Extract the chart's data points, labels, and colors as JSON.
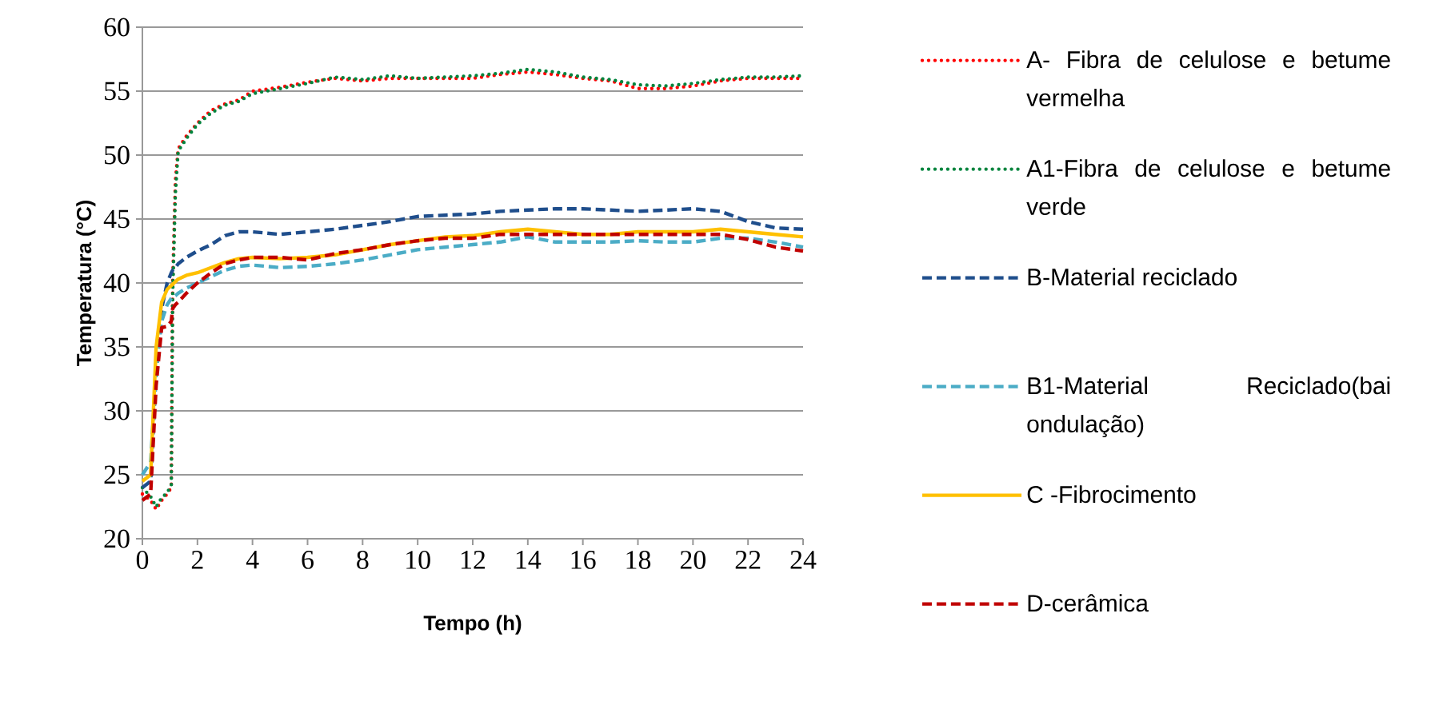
{
  "chart_data": {
    "type": "line",
    "xlabel": "Tempo (h)",
    "ylabel": "Temperatura (°C)",
    "x": [
      0,
      0.3,
      0.5,
      0.7,
      0.9,
      1.05,
      1.1,
      1.2,
      1.3,
      1.6,
      2,
      2.5,
      3,
      3.5,
      4,
      5,
      6,
      7,
      8,
      9,
      10,
      11,
      12,
      13,
      14,
      15,
      16,
      17,
      18,
      19,
      20,
      21,
      22,
      23,
      24
    ],
    "series": [
      {
        "name": "A- Fibra de celulose e betume vermelha",
        "color": "#ff0000",
        "line_style": "dotted",
        "values": [
          23.5,
          23,
          22.3,
          23,
          23.5,
          24,
          40,
          48,
          50.5,
          51.5,
          52.5,
          53.5,
          54,
          54.3,
          55,
          55.3,
          55.7,
          56,
          55.8,
          56,
          56,
          56,
          56,
          56.3,
          56.5,
          56.3,
          56,
          55.8,
          55.2,
          55.2,
          55.4,
          55.8,
          56,
          56,
          56
        ]
      },
      {
        "name": "A1-Fibra de celulose e betume verde",
        "color": "#00843d",
        "line_style": "dotted",
        "values": [
          24,
          23.3,
          22.5,
          23.2,
          23.6,
          24.2,
          39,
          47,
          50.3,
          51.3,
          52.4,
          53.3,
          53.9,
          54.2,
          54.8,
          55.2,
          55.6,
          56.1,
          55.9,
          56.2,
          56,
          56.1,
          56.2,
          56.4,
          56.7,
          56.5,
          56.1,
          55.9,
          55.5,
          55.4,
          55.6,
          55.9,
          56.1,
          56.1,
          56.2
        ]
      },
      {
        "name": "B-Material reciclado",
        "color": "#1f4e8c",
        "line_style": "dashed",
        "values": [
          24,
          24.5,
          33,
          38,
          40,
          40.8,
          41,
          41.2,
          41.5,
          42,
          42.5,
          43,
          43.7,
          44,
          44,
          43.8,
          44,
          44.2,
          44.5,
          44.8,
          45.2,
          45.3,
          45.4,
          45.6,
          45.7,
          45.8,
          45.8,
          45.7,
          45.6,
          45.7,
          45.8,
          45.6,
          44.8,
          44.3,
          44.2
        ]
      },
      {
        "name": "B1-Material Reciclado(bai ondulação)",
        "color": "#4bacc6",
        "line_style": "dashed",
        "values": [
          25,
          26,
          33,
          37,
          38.3,
          38.8,
          38.9,
          39,
          39.2,
          39.6,
          40,
          40.5,
          41,
          41.3,
          41.4,
          41.2,
          41.3,
          41.5,
          41.8,
          42.2,
          42.6,
          42.8,
          43,
          43.2,
          43.6,
          43.2,
          43.2,
          43.2,
          43.3,
          43.2,
          43.2,
          43.5,
          43.5,
          43.2,
          42.8
        ]
      },
      {
        "name": "C -Fibrocimento",
        "color": "#ffc000",
        "line_style": "solid",
        "values": [
          24.5,
          25,
          35,
          38.5,
          39.5,
          39.8,
          39.9,
          40.1,
          40.3,
          40.6,
          40.8,
          41.2,
          41.6,
          41.9,
          42,
          41.9,
          42,
          42.2,
          42.6,
          43,
          43.3,
          43.6,
          43.7,
          44,
          44.2,
          44,
          43.8,
          43.8,
          44,
          44,
          44,
          44.2,
          44,
          43.8,
          43.6
        ]
      },
      {
        "name": "D-cerâmica",
        "color": "#c00000",
        "line_style": "dashed",
        "values": [
          23,
          23.5,
          32,
          36.5,
          36.6,
          37,
          38,
          38.3,
          38.5,
          39.2,
          40,
          40.8,
          41.5,
          41.8,
          42,
          42,
          41.8,
          42.3,
          42.6,
          43,
          43.3,
          43.5,
          43.5,
          43.8,
          43.8,
          43.8,
          43.8,
          43.8,
          43.8,
          43.8,
          43.8,
          43.8,
          43.4,
          42.8,
          42.5
        ]
      }
    ],
    "xlim": [
      0,
      24
    ],
    "ylim": [
      20,
      60
    ],
    "xticks": [
      0,
      2,
      4,
      6,
      8,
      10,
      12,
      14,
      16,
      18,
      20,
      22,
      24
    ],
    "yticks": [
      20,
      25,
      30,
      35,
      40,
      45,
      50,
      55,
      60
    ],
    "grid": "y",
    "legend": "right"
  }
}
